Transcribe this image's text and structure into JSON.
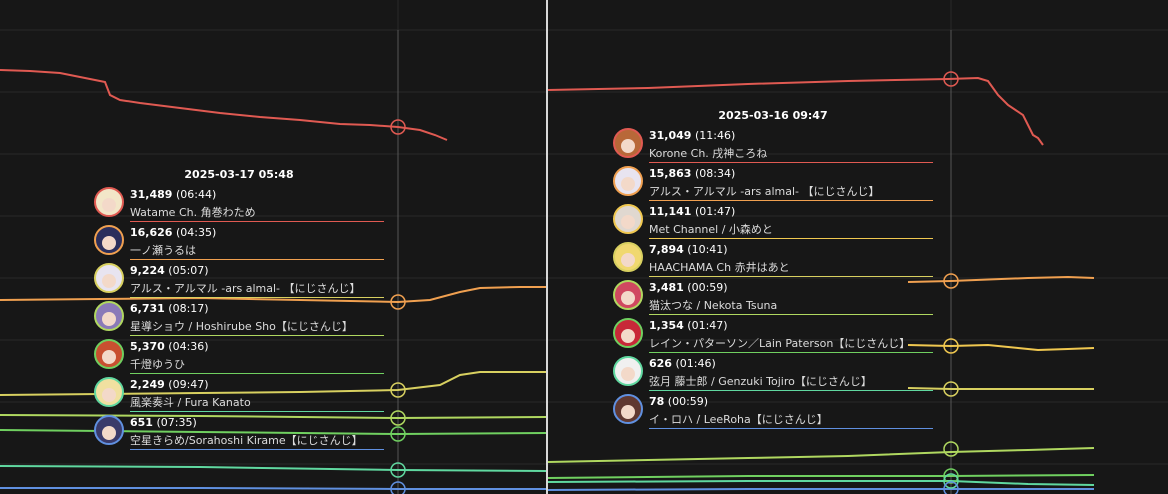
{
  "chart_data": [
    {
      "type": "line",
      "tooltip": {
        "title": "2025-03-17 05:48",
        "items": [
          {
            "count": "31,489",
            "time": "(06:44)",
            "name": "Watame Ch. 角巻わため",
            "color": "#e05a52",
            "hair": "#f2e6c8"
          },
          {
            "count": "16,626",
            "time": "(04:35)",
            "name": "一ノ瀬うるは",
            "color": "#f0a050",
            "hair": "#2a2e5c"
          },
          {
            "count": "9,224",
            "time": "(05:07)",
            "name": "アルス・アルマル -ars almal- 【にじさんじ】",
            "color": "#d8d060",
            "hair": "#e8e4f0"
          },
          {
            "count": "6,731",
            "time": "(08:17)",
            "name": "星導ショウ / Hoshirube Sho【にじさんじ】",
            "color": "#b0d860",
            "hair": "#8a7ab8"
          },
          {
            "count": "5,370",
            "time": "(04:36)",
            "name": "千燈ゆうひ",
            "color": "#70d060",
            "hair": "#c85030"
          },
          {
            "count": "2,249",
            "time": "(09:47)",
            "name": "風楽奏斗 / Fura Kanato",
            "color": "#60d8a0",
            "hair": "#f0e0a0"
          },
          {
            "count": "651",
            "time": "(07:35)",
            "name": "空星きらめ/Sorahoshi Kirame【にじさんじ】",
            "color": "#6090e0",
            "hair": "#3a3a6a"
          }
        ]
      },
      "series": [
        {
          "color": "#e05a52",
          "points": [
            [
              0,
              70
            ],
            [
              30,
              71
            ],
            [
              60,
              73
            ],
            [
              95,
              80
            ],
            [
              105,
              82
            ],
            [
              110,
              95
            ],
            [
              120,
              100
            ],
            [
              140,
              103
            ],
            [
              180,
              108
            ],
            [
              220,
              113
            ],
            [
              260,
              117
            ],
            [
              300,
              120
            ],
            [
              340,
              124
            ],
            [
              370,
              125
            ],
            [
              398,
              127
            ],
            [
              420,
              130
            ],
            [
              435,
              135
            ],
            [
              447,
              140
            ]
          ],
          "marker": [
            398,
            127
          ]
        },
        {
          "color": "#f0a050",
          "points": [
            [
              0,
              300
            ],
            [
              100,
              299
            ],
            [
              200,
              298
            ],
            [
              300,
              300
            ],
            [
              398,
              302
            ],
            [
              430,
              300
            ],
            [
              460,
              292
            ],
            [
              480,
              288
            ],
            [
              520,
              287
            ],
            [
              546,
              287
            ]
          ],
          "marker": [
            398,
            302
          ]
        },
        {
          "color": "#d8d060",
          "points": [
            [
              0,
              395
            ],
            [
              100,
              394
            ],
            [
              200,
              393
            ],
            [
              300,
              392
            ],
            [
              398,
              390
            ],
            [
              440,
              385
            ],
            [
              460,
              375
            ],
            [
              480,
              372
            ],
            [
              546,
              372
            ]
          ],
          "marker": [
            398,
            390
          ]
        },
        {
          "color": "#b0d860",
          "points": [
            [
              0,
              415
            ],
            [
              200,
              416
            ],
            [
              398,
              418
            ],
            [
              546,
              417
            ]
          ],
          "marker": [
            398,
            418
          ]
        },
        {
          "color": "#70d060",
          "points": [
            [
              0,
              430
            ],
            [
              200,
              432
            ],
            [
              398,
              434
            ],
            [
              546,
              433
            ]
          ],
          "marker": [
            398,
            434
          ]
        },
        {
          "color": "#60d8a0",
          "points": [
            [
              0,
              466
            ],
            [
              200,
              467
            ],
            [
              398,
              470
            ],
            [
              546,
              471
            ]
          ],
          "marker": [
            398,
            470
          ]
        },
        {
          "color": "#6090e0",
          "points": [
            [
              0,
              488
            ],
            [
              200,
              488
            ],
            [
              398,
              489
            ],
            [
              546,
              489
            ]
          ],
          "marker": [
            398,
            489
          ]
        }
      ]
    },
    {
      "type": "line",
      "tooltip": {
        "title": "2025-03-16 09:47",
        "items": [
          {
            "count": "31,049",
            "time": "(11:46)",
            "name": "Korone Ch. 戌神ころね",
            "color": "#e05a52",
            "hair": "#b86838"
          },
          {
            "count": "15,863",
            "time": "(08:34)",
            "name": "アルス・アルマル -ars almal- 【にじさんじ】",
            "color": "#f0a050",
            "hair": "#e8e4f0"
          },
          {
            "count": "11,141",
            "time": "(01:47)",
            "name": "Met Channel / 小森めと",
            "color": "#f0c850",
            "hair": "#e0d8d0"
          },
          {
            "count": "7,894",
            "time": "(10:41)",
            "name": "HAACHAMA Ch 赤井はあと",
            "color": "#d8d060",
            "hair": "#f0d870"
          },
          {
            "count": "3,481",
            "time": "(00:59)",
            "name": "猫汰つな / Nekota Tsuna",
            "color": "#b0d860",
            "hair": "#d04860"
          },
          {
            "count": "1,354",
            "time": "(01:47)",
            "name": "レイン・パターソン／Lain Paterson【にじさんじ】",
            "color": "#70d060",
            "hair": "#c82838"
          },
          {
            "count": "626",
            "time": "(01:46)",
            "name": "弦月 藤士郎 / Genzuki Tojiro【にじさんじ】",
            "color": "#60d8a0",
            "hair": "#f0f0f0"
          },
          {
            "count": "78",
            "time": "(00:59)",
            "name": "イ・ロハ / LeeRoha【にじさんじ】",
            "color": "#6090e0",
            "hair": "#603830"
          }
        ]
      },
      "series": [
        {
          "color": "#e05a52",
          "points": [
            [
              0,
              90
            ],
            [
              100,
              88
            ],
            [
              200,
              84
            ],
            [
              300,
              81
            ],
            [
              400,
              79
            ],
            [
              430,
              78
            ],
            [
              440,
              81
            ],
            [
              450,
              95
            ],
            [
              460,
              105
            ],
            [
              475,
              115
            ],
            [
              480,
              125
            ],
            [
              485,
              135
            ],
            [
              490,
              138
            ],
            [
              495,
              145
            ]
          ],
          "marker": [
            403,
            79
          ]
        },
        {
          "color": "#f0a050",
          "points": [
            [
              360,
              282
            ],
            [
              403,
              281
            ],
            [
              480,
              278
            ],
            [
              520,
              277
            ],
            [
              546,
              278
            ]
          ],
          "marker": [
            403,
            281
          ]
        },
        {
          "color": "#f0c850",
          "points": [
            [
              360,
              345
            ],
            [
              403,
              346
            ],
            [
              440,
              345
            ],
            [
              470,
              348
            ],
            [
              490,
              350
            ],
            [
              520,
              349
            ],
            [
              546,
              348
            ]
          ],
          "marker": [
            403,
            346
          ]
        },
        {
          "color": "#d8d060",
          "points": [
            [
              360,
              388
            ],
            [
              403,
              389
            ],
            [
              546,
              389
            ]
          ],
          "marker": [
            403,
            389
          ]
        },
        {
          "color": "#b0d860",
          "points": [
            [
              0,
              462
            ],
            [
              100,
              460
            ],
            [
              200,
              458
            ],
            [
              300,
              456
            ],
            [
              403,
              452
            ],
            [
              480,
              450
            ],
            [
              546,
              448
            ]
          ],
          "marker": [
            403,
            449
          ]
        },
        {
          "color": "#70d060",
          "points": [
            [
              0,
              478
            ],
            [
              200,
              476
            ],
            [
              403,
              476
            ],
            [
              546,
              475
            ]
          ],
          "marker": [
            403,
            476
          ]
        },
        {
          "color": "#60d8a0",
          "points": [
            [
              0,
              482
            ],
            [
              200,
              481
            ],
            [
              403,
              481
            ],
            [
              480,
              484
            ],
            [
              546,
              485
            ]
          ],
          "marker": [
            403,
            481
          ]
        },
        {
          "color": "#6090e0",
          "points": [
            [
              0,
              490
            ],
            [
              200,
              489
            ],
            [
              403,
              489
            ],
            [
              546,
              489
            ]
          ],
          "marker": [
            403,
            489
          ]
        }
      ]
    }
  ]
}
